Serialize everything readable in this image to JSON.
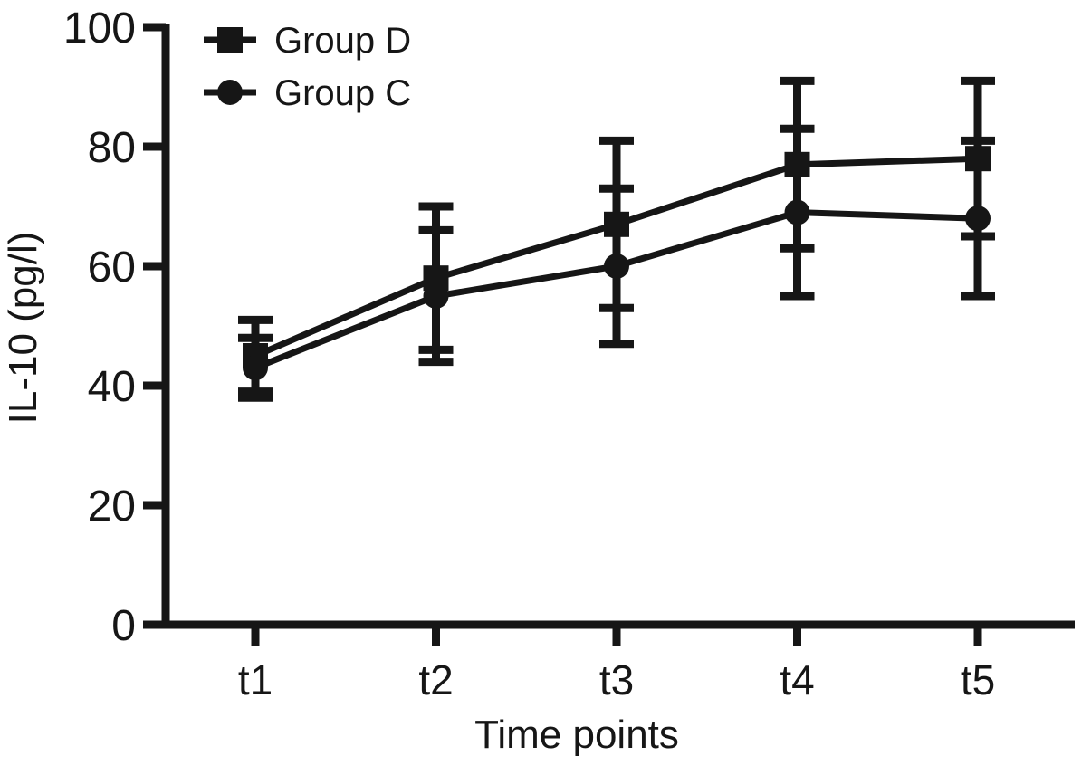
{
  "chart_data": {
    "type": "line",
    "title": "",
    "xlabel": "Time points",
    "ylabel": "IL-10 (pg/l)",
    "categories": [
      "t1",
      "t2",
      "t3",
      "t4",
      "t5"
    ],
    "yticks": [
      0,
      20,
      40,
      60,
      80,
      100
    ],
    "ylim": [
      0,
      100
    ],
    "grid": false,
    "legend_position": "top-left-inside",
    "line_color": "#161616",
    "background_color": "#ffffff",
    "error_bar_style": "symmetric-caps",
    "series": [
      {
        "name": "Group D",
        "marker": "square",
        "values": [
          45,
          58,
          67,
          77,
          78
        ],
        "error": [
          6,
          12,
          14,
          14,
          13
        ]
      },
      {
        "name": "Group C",
        "marker": "circle",
        "values": [
          43,
          55,
          60,
          69,
          68
        ],
        "error": [
          5,
          11,
          13,
          14,
          13
        ]
      }
    ]
  }
}
